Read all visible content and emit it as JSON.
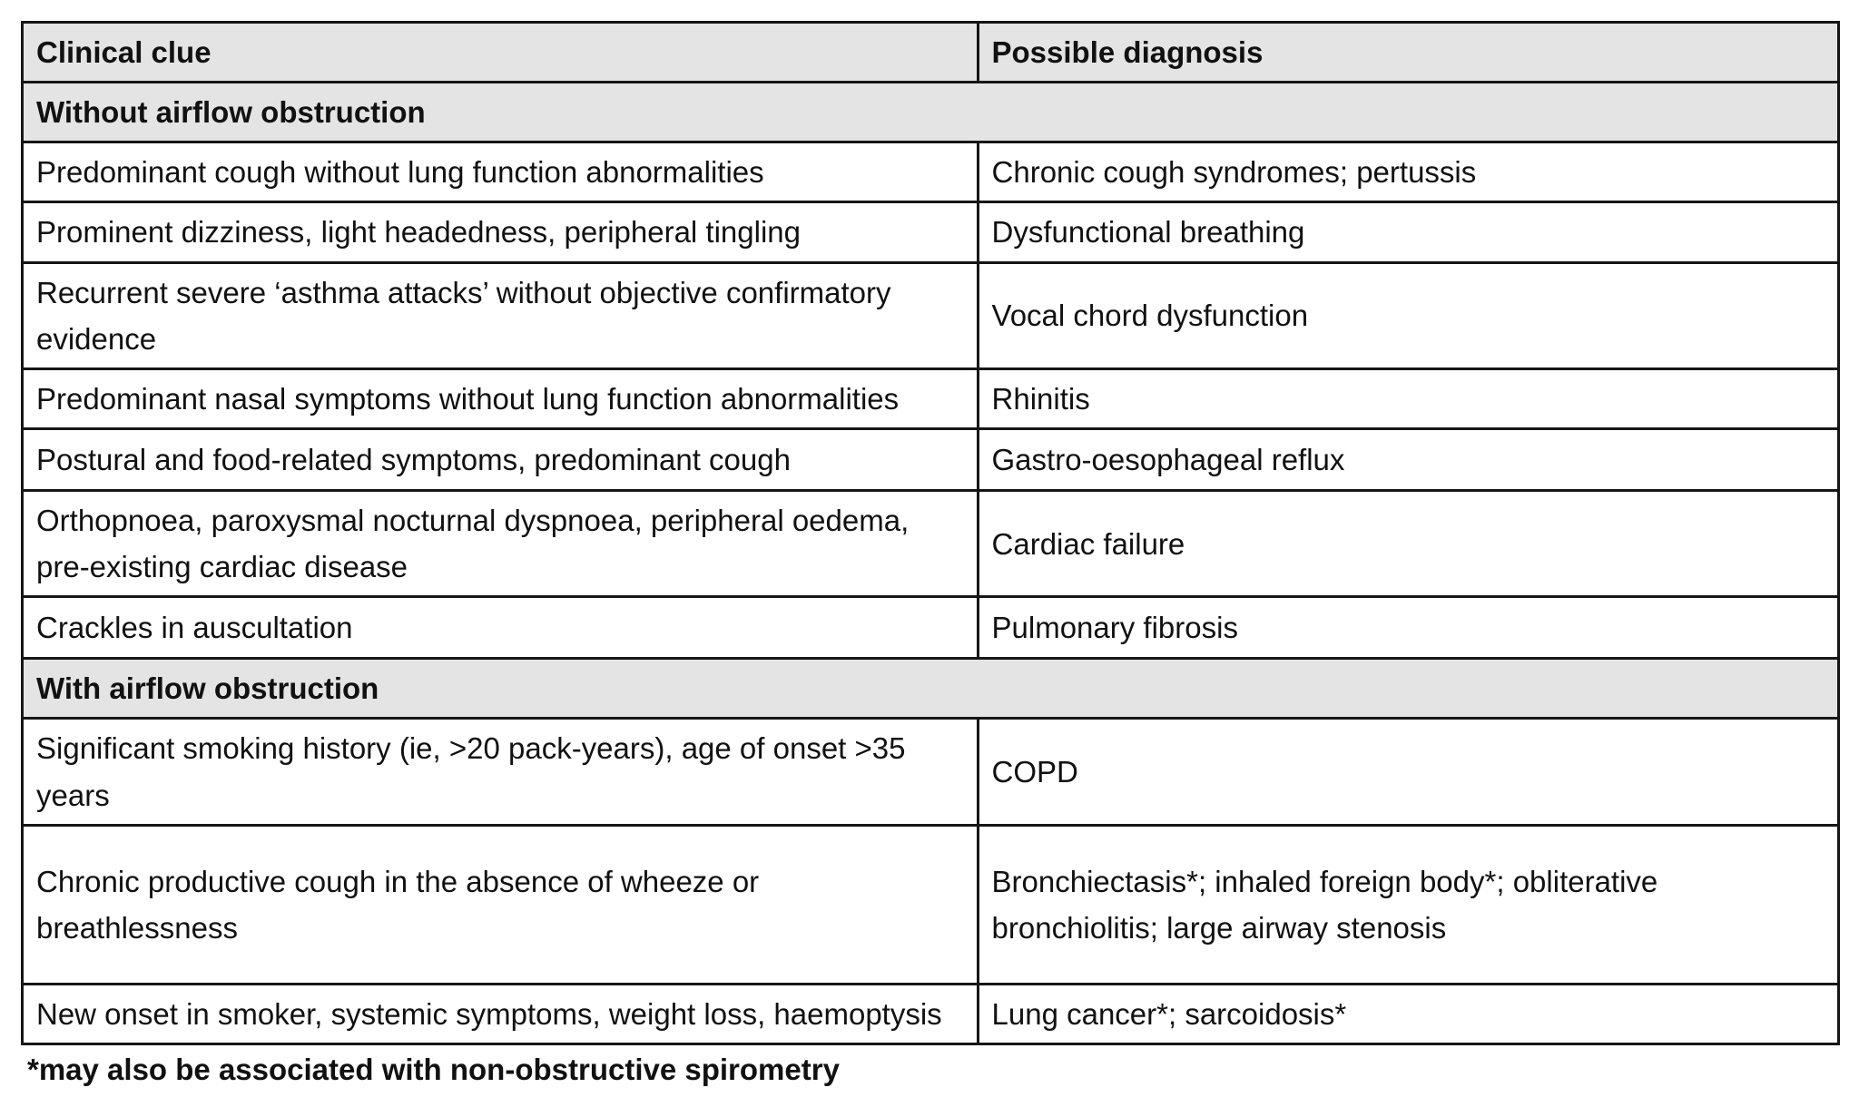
{
  "table": {
    "columns": [
      "Clinical clue",
      "Possible diagnosis"
    ],
    "sections": [
      {
        "header": "Without airflow obstruction",
        "rows": [
          {
            "clue": "Predominant cough without lung function abnormalities",
            "diagnosis": "Chronic cough syndromes; pertussis"
          },
          {
            "clue": "Prominent dizziness, light headedness, peripheral tingling",
            "diagnosis": "Dysfunctional breathing"
          },
          {
            "clue": "Recurrent severe ‘asthma attacks’ without objective confirmatory evidence",
            "diagnosis": "Vocal chord dysfunction"
          },
          {
            "clue": "Predominant nasal symptoms without lung function abnormalities",
            "diagnosis": "Rhinitis"
          },
          {
            "clue": "Postural and food-related symptoms, predominant cough",
            "diagnosis": "Gastro-oesophageal reflux"
          },
          {
            "clue": "Orthopnoea, paroxysmal nocturnal dyspnoea, peripheral oedema, pre-existing cardiac disease",
            "diagnosis": "Cardiac failure"
          },
          {
            "clue": "Crackles in auscultation",
            "diagnosis": "Pulmonary fibrosis"
          }
        ]
      },
      {
        "header": "With airflow obstruction",
        "rows": [
          {
            "clue": "Significant smoking history (ie, >20 pack-years), age of onset >35 years",
            "diagnosis": "COPD"
          },
          {
            "clue": "Chronic productive cough in the absence of wheeze or breathlessness",
            "diagnosis": "Bronchiectasis*; inhaled foreign body*; obliterative bronchiolitis; large airway stenosis"
          },
          {
            "clue": "New onset in smoker, systemic symptoms, weight loss, haemoptysis",
            "diagnosis": "Lung cancer*; sarcoidosis*"
          }
        ]
      }
    ],
    "footnote": "*may also be associated with non-obstructive spirometry"
  },
  "colors": {
    "header_bg": "#e4e4e4",
    "border": "#161616",
    "page_bg": "#ffffff",
    "text": "#111111"
  }
}
